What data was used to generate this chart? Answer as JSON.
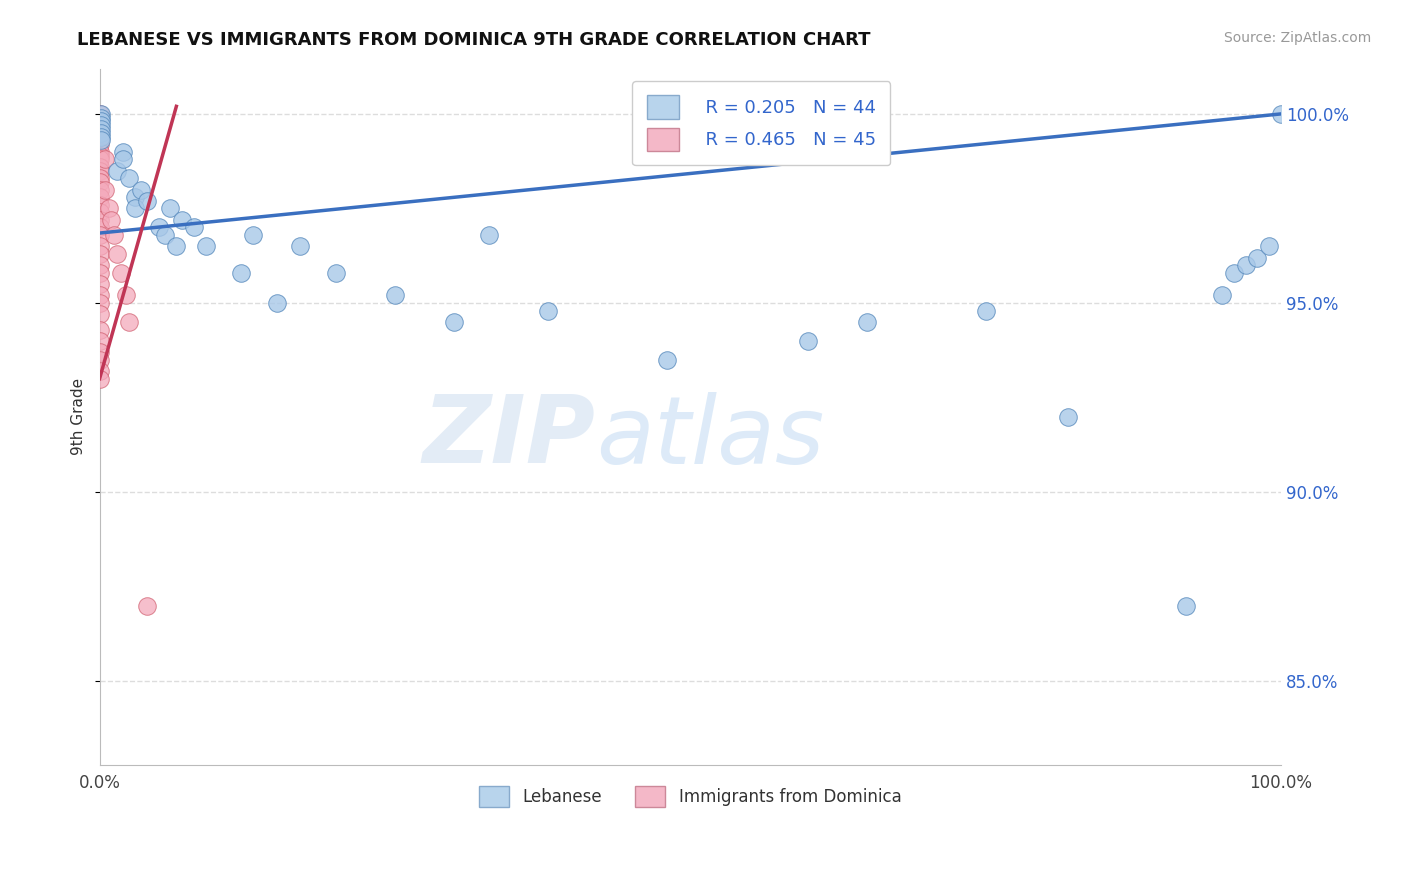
{
  "title": "LEBANESE VS IMMIGRANTS FROM DOMINICA 9TH GRADE CORRELATION CHART",
  "source": "Source: ZipAtlas.com",
  "ylabel": "9th Grade",
  "xlim": [
    0.0,
    1.0
  ],
  "ylim": [
    0.828,
    1.012
  ],
  "yticks": [
    0.85,
    0.9,
    0.95,
    1.0
  ],
  "ytick_labels": [
    "85.0%",
    "90.0%",
    "95.0%",
    "100.0%"
  ],
  "legend_r_blue": "R = 0.205",
  "legend_n_blue": "N = 44",
  "legend_r_pink": "R = 0.465",
  "legend_n_pink": "N = 45",
  "blue_color": "#a8c8e8",
  "blue_edge": "#5588bb",
  "pink_color": "#f4aabc",
  "pink_edge": "#d06070",
  "line_blue_color": "#3a6fc0",
  "line_pink_color": "#c03555",
  "watermark_zip": "ZIP",
  "watermark_atlas": "atlas",
  "bg_color": "#ffffff",
  "grid_color": "#dddddd",
  "blue_x": [
    0.001,
    0.001,
    0.001,
    0.001,
    0.001,
    0.001,
    0.001,
    0.001,
    0.015,
    0.02,
    0.02,
    0.025,
    0.03,
    0.03,
    0.035,
    0.04,
    0.05,
    0.055,
    0.06,
    0.065,
    0.07,
    0.08,
    0.09,
    0.12,
    0.13,
    0.15,
    0.17,
    0.2,
    0.25,
    0.3,
    0.33,
    0.38,
    0.48,
    0.6,
    0.65,
    0.75,
    0.82,
    0.92,
    0.95,
    0.96,
    0.97,
    0.98,
    0.99,
    1.0
  ],
  "blue_y": [
    1.0,
    0.999,
    0.998,
    0.997,
    0.996,
    0.995,
    0.994,
    0.993,
    0.985,
    0.99,
    0.988,
    0.983,
    0.978,
    0.975,
    0.98,
    0.977,
    0.97,
    0.968,
    0.975,
    0.965,
    0.972,
    0.97,
    0.965,
    0.958,
    0.968,
    0.95,
    0.965,
    0.958,
    0.952,
    0.945,
    0.968,
    0.948,
    0.935,
    0.94,
    0.945,
    0.948,
    0.92,
    0.87,
    0.952,
    0.958,
    0.96,
    0.962,
    0.965,
    1.0
  ],
  "pink_x": [
    0.0,
    0.0,
    0.0,
    0.0,
    0.0,
    0.0,
    0.0,
    0.0,
    0.0,
    0.0,
    0.0,
    0.0,
    0.0,
    0.0,
    0.0,
    0.0,
    0.0,
    0.0,
    0.0,
    0.0,
    0.0,
    0.0,
    0.0,
    0.0,
    0.0,
    0.0,
    0.0,
    0.0,
    0.0,
    0.0,
    0.0,
    0.0,
    0.0,
    0.0,
    0.0,
    0.005,
    0.005,
    0.008,
    0.01,
    0.012,
    0.015,
    0.018,
    0.022,
    0.025,
    0.04
  ],
  "pink_y": [
    1.0,
    0.998,
    0.997,
    0.996,
    0.995,
    0.993,
    0.992,
    0.99,
    0.989,
    0.988,
    0.986,
    0.985,
    0.983,
    0.982,
    0.98,
    0.978,
    0.976,
    0.974,
    0.972,
    0.97,
    0.968,
    0.965,
    0.963,
    0.96,
    0.958,
    0.955,
    0.952,
    0.95,
    0.947,
    0.943,
    0.94,
    0.937,
    0.935,
    0.932,
    0.93,
    0.988,
    0.98,
    0.975,
    0.972,
    0.968,
    0.963,
    0.958,
    0.952,
    0.945,
    0.87
  ]
}
